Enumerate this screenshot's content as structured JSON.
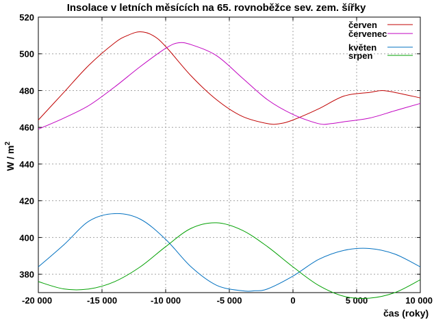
{
  "chart_data": {
    "type": "line",
    "title": "Insolace v letních měsících na 65. rovnoběžce sev. zem. šířky",
    "xlabel": "čas (roky)",
    "ylabel": "W / m",
    "ylabel_sup": "2",
    "xlim": [
      -20000,
      10000
    ],
    "ylim": [
      370,
      520
    ],
    "x_ticks": [
      -20000,
      -15000,
      -10000,
      -5000,
      0,
      5000,
      10000
    ],
    "x_tick_labels": [
      "-20 000",
      "-15 000",
      "-10 000",
      "-5 000",
      "0",
      "5 000",
      "10 000"
    ],
    "y_ticks": [
      380,
      400,
      420,
      440,
      460,
      480,
      500,
      520
    ],
    "y_tick_labels": [
      "380",
      "400",
      "420",
      "440",
      "460",
      "480",
      "500",
      "520"
    ],
    "grid": true,
    "legend_position": "top-right",
    "series": [
      {
        "name": "červen",
        "color": "#c00000",
        "x": [
          -20000,
          -18000,
          -16000,
          -14000,
          -13000,
          -12000,
          -11000,
          -10000,
          -8000,
          -6000,
          -4000,
          -2000,
          -1000,
          0,
          2000,
          4000,
          6000,
          7000,
          8000,
          10000
        ],
        "y": [
          464,
          479,
          494,
          506,
          510,
          512,
          510,
          504,
          488,
          475,
          466,
          462,
          462,
          464,
          470,
          477,
          479,
          480,
          479,
          476
        ]
      },
      {
        "name": "červenec",
        "color": "#c000c0",
        "x": [
          -20000,
          -18000,
          -16000,
          -14000,
          -12000,
          -10000,
          -9000,
          -8000,
          -6000,
          -4000,
          -2000,
          0,
          2000,
          3000,
          4000,
          6000,
          8000,
          10000
        ],
        "y": [
          459,
          465,
          472,
          482,
          493,
          503,
          506,
          505,
          499,
          487,
          475,
          467,
          462,
          462,
          463,
          465,
          469,
          473
        ]
      },
      {
        "name": "květen",
        "color": "#0070c0",
        "x": [
          -20000,
          -18000,
          -16000,
          -14000,
          -12000,
          -10000,
          -8000,
          -6000,
          -4000,
          -3000,
          -2000,
          0,
          2000,
          4000,
          6000,
          8000,
          10000
        ],
        "y": [
          384,
          396,
          409,
          413,
          410,
          399,
          384,
          374,
          371,
          371,
          372,
          379,
          388,
          393,
          394,
          391,
          384
        ]
      },
      {
        "name": "srpen",
        "color": "#00a000",
        "x": [
          -20000,
          -18000,
          -16000,
          -14000,
          -12000,
          -10000,
          -8000,
          -6000,
          -4000,
          -2000,
          0,
          2000,
          4000,
          6000,
          8000,
          10000
        ],
        "y": [
          376,
          372,
          372,
          376,
          384,
          395,
          405,
          408,
          404,
          395,
          384,
          374,
          368,
          367,
          370,
          377
        ]
      }
    ]
  }
}
